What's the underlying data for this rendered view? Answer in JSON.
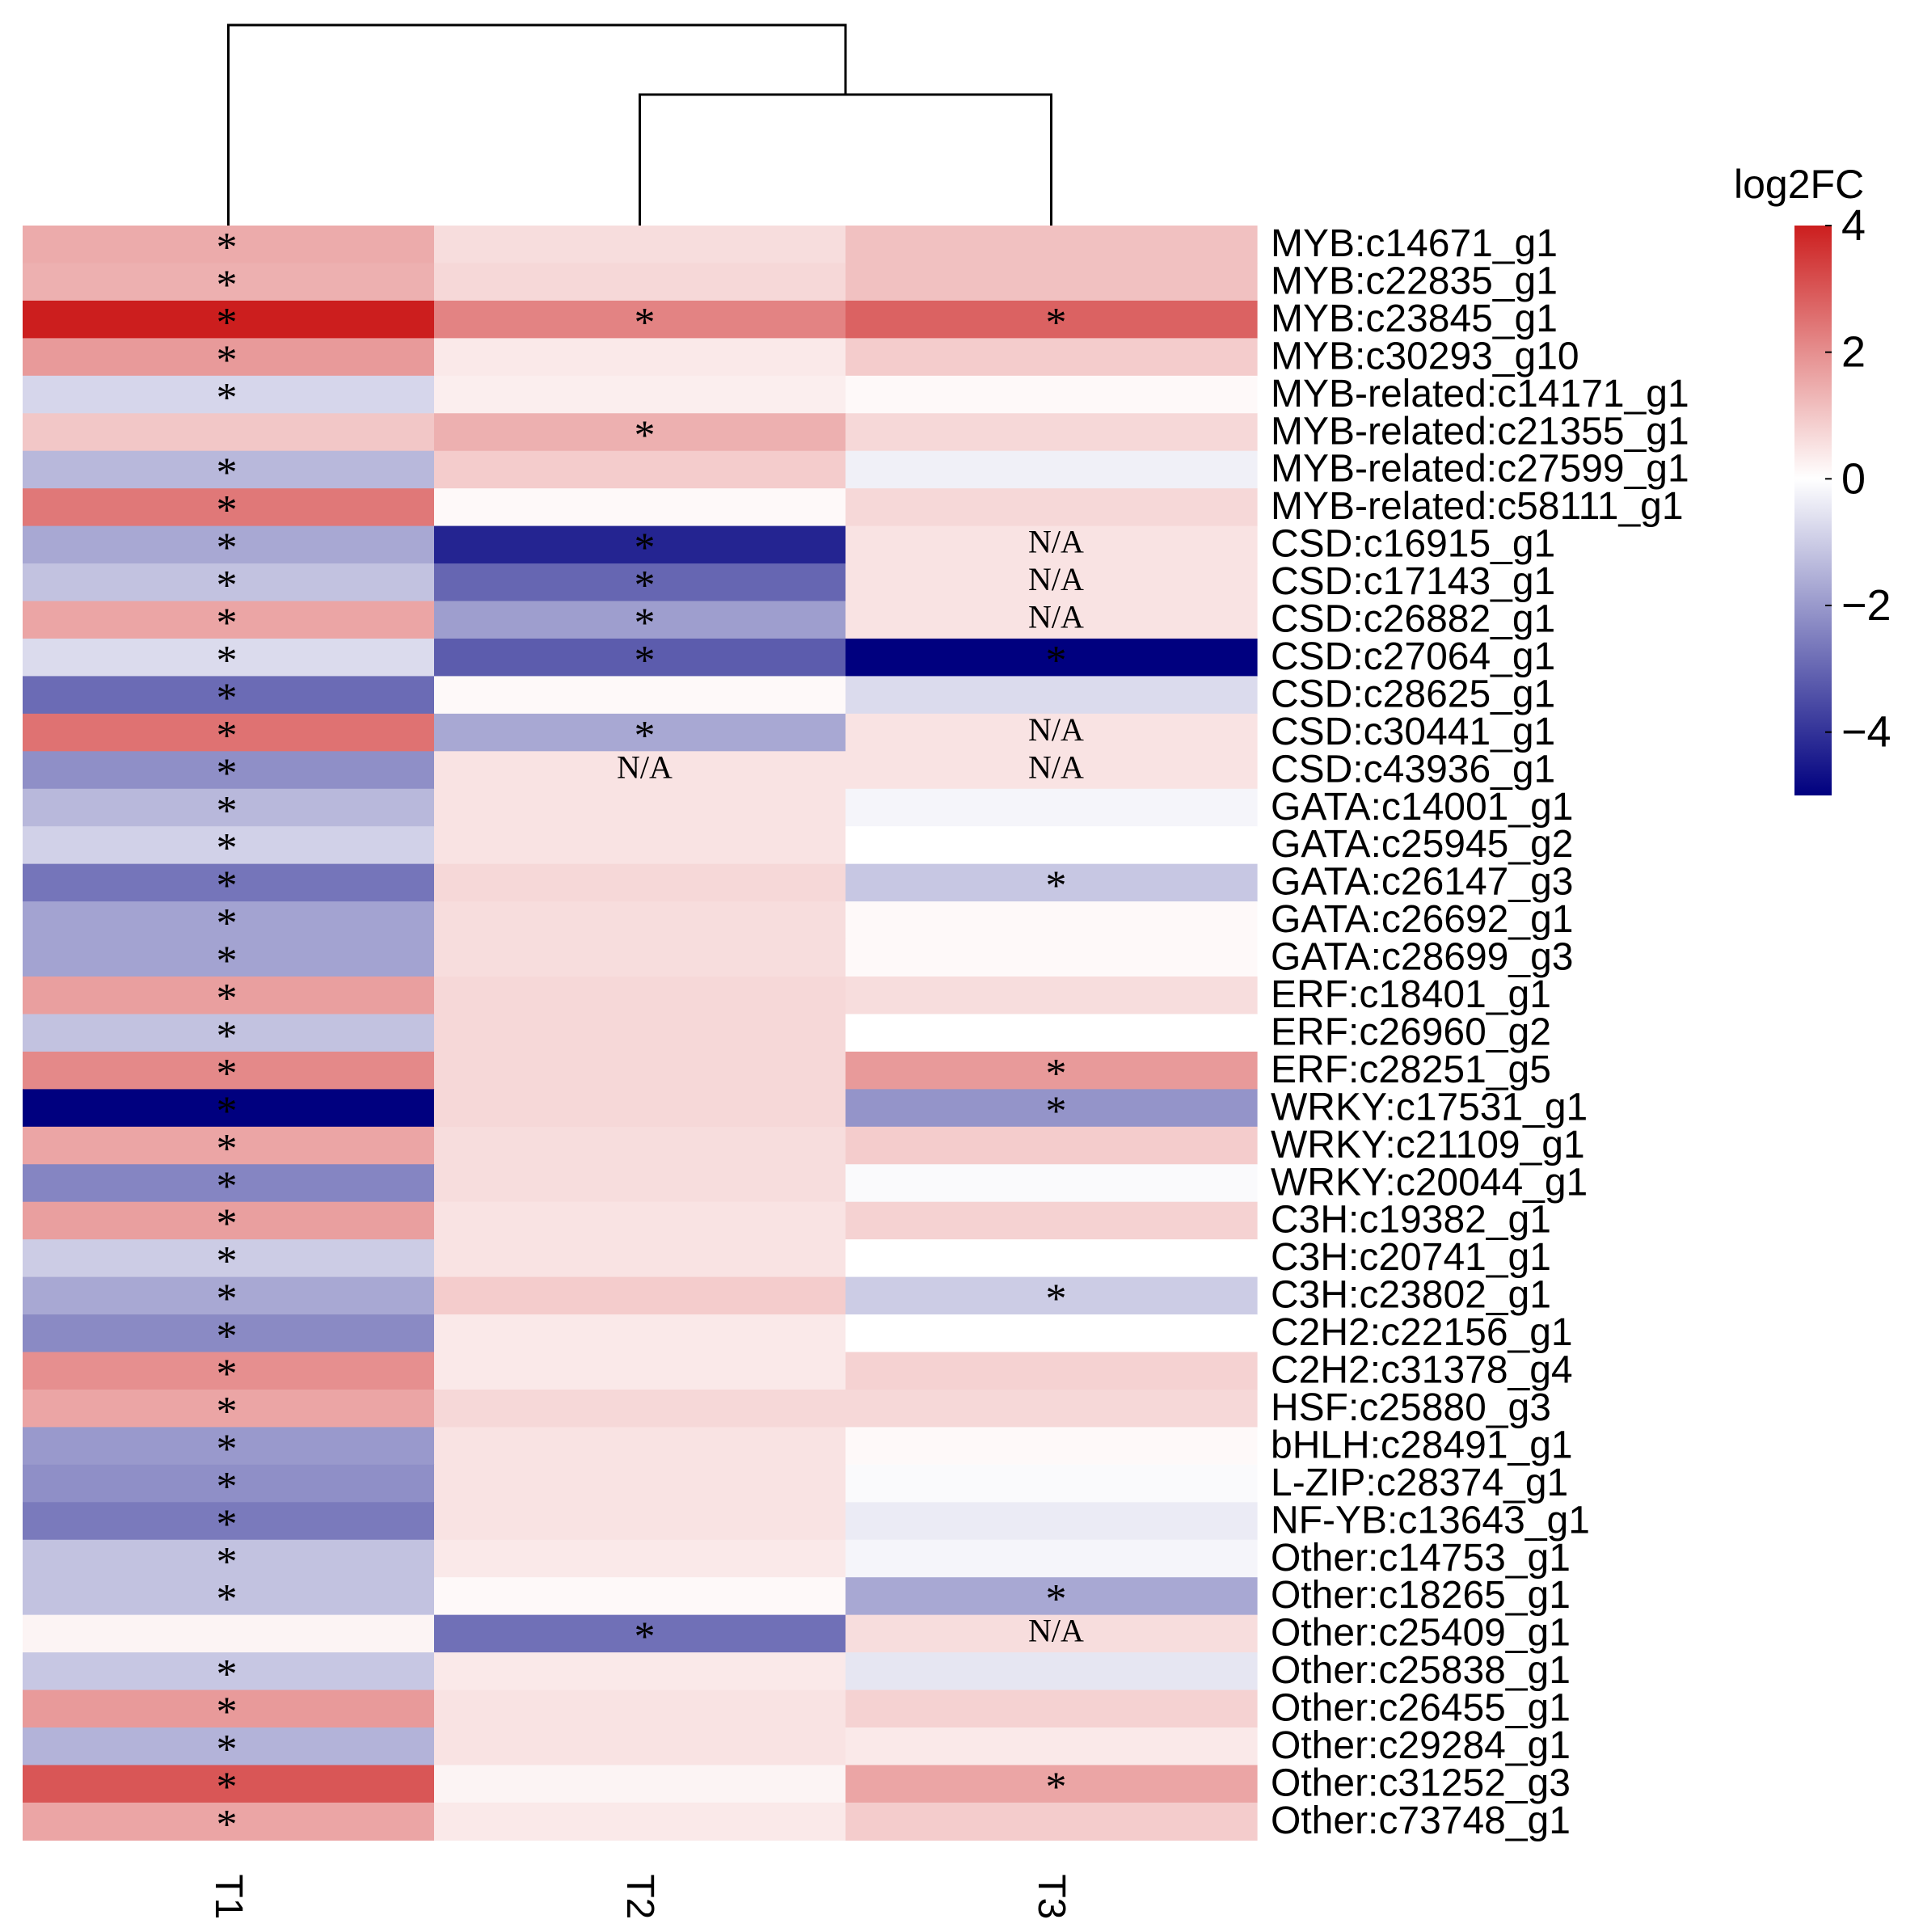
{
  "chart_data": {
    "type": "heatmap",
    "columns": [
      "T1",
      "T2",
      "T3"
    ],
    "rows": [
      {
        "label": "MYB:c14671_g1",
        "values": [
          1.5,
          0.6,
          1.1
        ],
        "marks": [
          "*",
          "",
          ""
        ]
      },
      {
        "label": "MYB:c22835_g1",
        "values": [
          1.4,
          0.7,
          1.1
        ],
        "marks": [
          "*",
          "",
          ""
        ]
      },
      {
        "label": "MYB:c23845_g1",
        "values": [
          4.0,
          2.2,
          2.8
        ],
        "marks": [
          "*",
          "*",
          "*"
        ]
      },
      {
        "label": "MYB:c30293_g10",
        "values": [
          1.8,
          0.4,
          0.9
        ],
        "marks": [
          "*",
          "",
          ""
        ]
      },
      {
        "label": "MYB-related:c14171_g1",
        "values": [
          -0.8,
          0.3,
          0.1
        ],
        "marks": [
          "*",
          "",
          ""
        ]
      },
      {
        "label": "MYB-related:c21355_g1",
        "values": [
          1.0,
          1.4,
          0.7
        ],
        "marks": [
          "",
          "*",
          ""
        ]
      },
      {
        "label": "MYB-related:c27599_g1",
        "values": [
          -1.4,
          0.9,
          -0.3
        ],
        "marks": [
          "*",
          "",
          ""
        ]
      },
      {
        "label": "MYB-related:c58111_g1",
        "values": [
          2.4,
          0.1,
          0.7
        ],
        "marks": [
          "*",
          "",
          ""
        ]
      },
      {
        "label": "CSD:c16915_g1",
        "values": [
          -1.7,
          -4.3,
          0.5
        ],
        "marks": [
          "*",
          "*",
          "N/A"
        ]
      },
      {
        "label": "CSD:c17143_g1",
        "values": [
          -1.2,
          -3.0,
          0.5
        ],
        "marks": [
          "*",
          "*",
          "N/A"
        ]
      },
      {
        "label": "CSD:c26882_g1",
        "values": [
          1.6,
          -1.9,
          0.5
        ],
        "marks": [
          "*",
          "*",
          "N/A"
        ]
      },
      {
        "label": "CSD:c27064_g1",
        "values": [
          -0.7,
          -3.2,
          -5.0
        ],
        "marks": [
          "*",
          "*",
          "*"
        ]
      },
      {
        "label": "CSD:c28625_g1",
        "values": [
          -2.9,
          0.1,
          -0.7
        ],
        "marks": [
          "*",
          "",
          ""
        ]
      },
      {
        "label": "CSD:c30441_g1",
        "values": [
          2.5,
          -1.7,
          0.5
        ],
        "marks": [
          "*",
          "*",
          "N/A"
        ]
      },
      {
        "label": "CSD:c43936_g1",
        "values": [
          -2.2,
          0.5,
          0.5
        ],
        "marks": [
          "*",
          "N/A",
          "N/A"
        ]
      },
      {
        "label": "GATA:c14001_g1",
        "values": [
          -1.4,
          0.5,
          -0.2
        ],
        "marks": [
          "*",
          "",
          ""
        ]
      },
      {
        "label": "GATA:c25945_g2",
        "values": [
          -0.9,
          0.5,
          0.0
        ],
        "marks": [
          "*",
          "",
          ""
        ]
      },
      {
        "label": "GATA:c26147_g3",
        "values": [
          -2.7,
          0.7,
          -1.1
        ],
        "marks": [
          "*",
          "",
          "*"
        ]
      },
      {
        "label": "GATA:c26692_g1",
        "values": [
          -1.8,
          0.6,
          0.1
        ],
        "marks": [
          "*",
          "",
          ""
        ]
      },
      {
        "label": "GATA:c28699_g3",
        "values": [
          -1.8,
          0.6,
          0.1
        ],
        "marks": [
          "*",
          "",
          ""
        ]
      },
      {
        "label": "ERF:c18401_g1",
        "values": [
          1.7,
          0.7,
          0.6
        ],
        "marks": [
          "*",
          "",
          ""
        ]
      },
      {
        "label": "ERF:c26960_g2",
        "values": [
          -1.2,
          0.7,
          0.0
        ],
        "marks": [
          "*",
          "",
          ""
        ]
      },
      {
        "label": "ERF:c28251_g5",
        "values": [
          2.1,
          0.7,
          1.8
        ],
        "marks": [
          "*",
          "",
          "*"
        ]
      },
      {
        "label": "WRKY:c17531_g1",
        "values": [
          -5.0,
          0.7,
          -2.1
        ],
        "marks": [
          "*",
          "",
          "*"
        ]
      },
      {
        "label": "WRKY:c21109_g1",
        "values": [
          1.6,
          0.6,
          0.9
        ],
        "marks": [
          "*",
          "",
          ""
        ]
      },
      {
        "label": "WRKY:c20044_g1",
        "values": [
          -2.4,
          0.6,
          -0.1
        ],
        "marks": [
          "*",
          "",
          ""
        ]
      },
      {
        "label": "C3H:c19382_g1",
        "values": [
          1.7,
          0.5,
          0.8
        ],
        "marks": [
          "*",
          "",
          ""
        ]
      },
      {
        "label": "C3H:c20741_g1",
        "values": [
          -1.0,
          0.5,
          0.0
        ],
        "marks": [
          "*",
          "",
          ""
        ]
      },
      {
        "label": "C3H:c23802_g1",
        "values": [
          -1.7,
          0.9,
          -1.0
        ],
        "marks": [
          "*",
          "",
          "*"
        ]
      },
      {
        "label": "C2H2:c22156_g1",
        "values": [
          -2.3,
          0.4,
          0.0
        ],
        "marks": [
          "*",
          "",
          ""
        ]
      },
      {
        "label": "C2H2:c31378_g4",
        "values": [
          2.0,
          0.4,
          0.8
        ],
        "marks": [
          "*",
          "",
          ""
        ]
      },
      {
        "label": "HSF:c25880_g3",
        "values": [
          1.6,
          0.7,
          0.7
        ],
        "marks": [
          "*",
          "",
          ""
        ]
      },
      {
        "label": "bHLH:c28491_g1",
        "values": [
          -2.0,
          0.5,
          0.1
        ],
        "marks": [
          "*",
          "",
          ""
        ]
      },
      {
        "label": "L-ZIP:c28374_g1",
        "values": [
          -2.2,
          0.5,
          -0.1
        ],
        "marks": [
          "*",
          "",
          ""
        ]
      },
      {
        "label": "NF-YB:c13643_g1",
        "values": [
          -2.6,
          0.5,
          -0.4
        ],
        "marks": [
          "*",
          "",
          ""
        ]
      },
      {
        "label": "Other:c14753_g1",
        "values": [
          -1.2,
          0.4,
          -0.2
        ],
        "marks": [
          "*",
          "",
          ""
        ]
      },
      {
        "label": "Other:c18265_g1",
        "values": [
          -1.2,
          0.1,
          -1.7
        ],
        "marks": [
          "*",
          "",
          "*"
        ]
      },
      {
        "label": "Other:c25409_g1",
        "values": [
          0.2,
          -2.8,
          0.6
        ],
        "marks": [
          "",
          "*",
          "N/A"
        ]
      },
      {
        "label": "Other:c25838_g1",
        "values": [
          -1.1,
          0.4,
          -0.5
        ],
        "marks": [
          "*",
          "",
          ""
        ]
      },
      {
        "label": "Other:c26455_g1",
        "values": [
          1.8,
          0.5,
          0.8
        ],
        "marks": [
          "*",
          "",
          ""
        ]
      },
      {
        "label": "Other:c29284_g1",
        "values": [
          -1.5,
          0.5,
          0.4
        ],
        "marks": [
          "*",
          "",
          ""
        ]
      },
      {
        "label": "Other:c31252_g3",
        "values": [
          3.0,
          0.2,
          1.6
        ],
        "marks": [
          "*",
          "",
          "*"
        ]
      },
      {
        "label": "Other:c73748_g1",
        "values": [
          1.6,
          0.4,
          0.9
        ],
        "marks": [
          "*",
          "",
          ""
        ]
      }
    ],
    "legend": {
      "title": "log2FC",
      "range": [
        -5,
        4
      ],
      "ticks": [
        4,
        2,
        0,
        -2,
        -4
      ],
      "tick_labels": [
        "4",
        "2",
        "0",
        "−2",
        "−4"
      ],
      "colors": {
        "low": "#00007F",
        "mid": "#FFFFFF",
        "high": "#CC1E1E"
      }
    },
    "dendrogram": {
      "merges": [
        [
          "T2",
          "T3"
        ],
        [
          "T1",
          "T2+T3"
        ]
      ]
    }
  }
}
